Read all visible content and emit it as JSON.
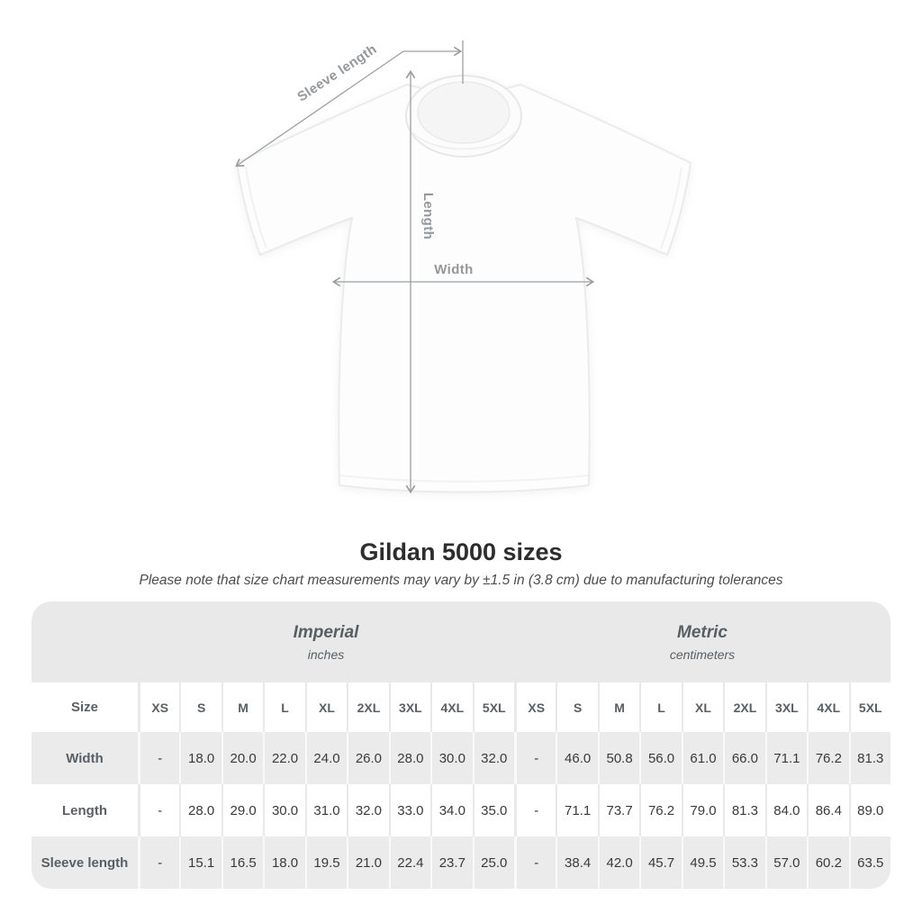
{
  "diagram": {
    "labels": {
      "sleeve_length": "Sleeve length",
      "length": "Length",
      "width": "Width"
    }
  },
  "header": {
    "title": "Gildan 5000 sizes",
    "subtitle": "Please note that size chart measurements may vary by ±1.5 in (3.8 cm) due to manufacturing tolerances"
  },
  "table": {
    "groups": [
      {
        "label": "Imperial",
        "sublabel": "inches"
      },
      {
        "label": "Metric",
        "sublabel": "centimeters"
      }
    ],
    "size_header": "Size",
    "sizes": [
      "XS",
      "S",
      "M",
      "L",
      "XL",
      "2XL",
      "3XL",
      "4XL",
      "5XL"
    ],
    "rows": [
      {
        "label": "Width",
        "imperial": [
          "-",
          "18.0",
          "20.0",
          "22.0",
          "24.0",
          "26.0",
          "28.0",
          "30.0",
          "32.0"
        ],
        "metric": [
          "-",
          "46.0",
          "50.8",
          "56.0",
          "61.0",
          "66.0",
          "71.1",
          "76.2",
          "81.3"
        ]
      },
      {
        "label": "Length",
        "imperial": [
          "-",
          "28.0",
          "29.0",
          "30.0",
          "31.0",
          "32.0",
          "33.0",
          "34.0",
          "35.0"
        ],
        "metric": [
          "-",
          "71.1",
          "73.7",
          "76.2",
          "79.0",
          "81.3",
          "84.0",
          "86.4",
          "89.0"
        ]
      },
      {
        "label": "Sleeve length",
        "imperial": [
          "-",
          "15.1",
          "16.5",
          "18.0",
          "19.5",
          "21.0",
          "22.4",
          "23.7",
          "25.0"
        ],
        "metric": [
          "-",
          "38.4",
          "42.0",
          "45.7",
          "49.5",
          "53.3",
          "57.0",
          "60.2",
          "63.5"
        ]
      }
    ]
  },
  "colors": {
    "band_grey": "#e9e9e9",
    "row_grey": "#ebebeb",
    "label_text": "#596065",
    "value_text": "#3a3a3a",
    "annotation_grey": "#9aa0a2",
    "title_text": "#2d2d2d"
  }
}
